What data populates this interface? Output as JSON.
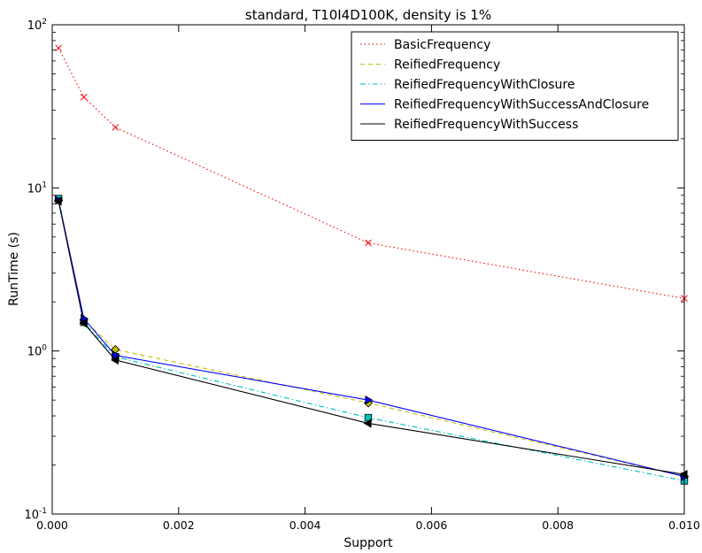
{
  "chart_data": {
    "type": "line",
    "title": "standard, T10I4D100K, density is 1%",
    "xlabel": "Support",
    "ylabel": "RunTime (s)",
    "xlim": [
      0.0,
      0.01
    ],
    "ylim": [
      0.1,
      100
    ],
    "yscale": "log",
    "grid": false,
    "legend_position": "top-right",
    "x_ticks": [
      {
        "value": 0.0,
        "label": "0.000"
      },
      {
        "value": 0.002,
        "label": "0.002"
      },
      {
        "value": 0.004,
        "label": "0.004"
      },
      {
        "value": 0.006,
        "label": "0.006"
      },
      {
        "value": 0.008,
        "label": "0.008"
      },
      {
        "value": 0.01,
        "label": "0.010"
      }
    ],
    "y_ticks": [
      {
        "value": 0.1,
        "base": "10",
        "exp": "-1"
      },
      {
        "value": 1,
        "base": "10",
        "exp": "0"
      },
      {
        "value": 10,
        "base": "10",
        "exp": "1"
      },
      {
        "value": 100,
        "base": "10",
        "exp": "2"
      }
    ],
    "series": [
      {
        "name": "BasicFrequency",
        "color": "#ff0000",
        "dash": "dotted",
        "marker": "x",
        "x": [
          0.0001,
          0.0005,
          0.001,
          0.005,
          0.01
        ],
        "y": [
          72,
          36,
          23.5,
          4.6,
          2.1
        ]
      },
      {
        "name": "ReifiedFrequency",
        "color": "#bfbf00",
        "dash": "dashed",
        "marker": "diamond",
        "x": [
          0.0001,
          0.0005,
          0.001,
          0.005,
          0.01
        ],
        "y": [
          8.4,
          1.55,
          1.02,
          0.48,
          0.17
        ]
      },
      {
        "name": "ReifiedFrequencyWithClosure",
        "color": "#00bfbf",
        "dash": "dashdot",
        "marker": "square",
        "x": [
          0.0001,
          0.0005,
          0.001,
          0.005,
          0.01
        ],
        "y": [
          8.6,
          1.5,
          0.92,
          0.39,
          0.16
        ]
      },
      {
        "name": "ReifiedFrequencyWithSuccessAndClosure",
        "color": "#0000ff",
        "dash": "solid",
        "marker": "triangle-right",
        "x": [
          0.0001,
          0.0005,
          0.001,
          0.005,
          0.01
        ],
        "y": [
          8.4,
          1.58,
          0.94,
          0.5,
          0.17
        ]
      },
      {
        "name": "ReifiedFrequencyWithSuccess",
        "color": "#000000",
        "dash": "solid",
        "marker": "triangle-left",
        "x": [
          0.0001,
          0.0005,
          0.001,
          0.005,
          0.01
        ],
        "y": [
          8.3,
          1.48,
          0.88,
          0.36,
          0.175
        ]
      }
    ]
  }
}
